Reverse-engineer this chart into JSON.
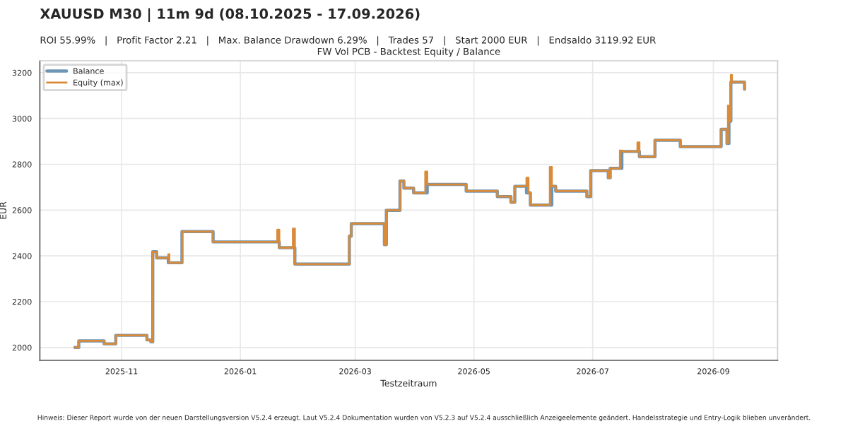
{
  "chart_data": {
    "type": "step",
    "title": "XAUUSD M30 | 11m 9d (08.10.2025 - 17.09.2026)",
    "subtitle": "ROI 55.99%   |   Profit Factor 2.21   |   Max. Balance Drawdown 6.29%   |   Trades 57   |   Start 2000 EUR   |   Endsaldo 3119.92 EUR",
    "annotations": [
      "FW Vol PCB - Backtest Equity / Balance",
      "Hinweis: Dieser Report wurde von der neuen Darstellungsversion V5.2.4 erzeugt. Laut V5.2.4 Dokumentation wurden von V5.2.3 auf V5.2.4 ausschließlich Anzeigeelemente geändert. Handelsstrategie und Entry-Logik blieben unverändert."
    ],
    "xlabel": "Testzeitraum",
    "ylabel": "EUR",
    "xlim": [
      "2025-09-20",
      "2026-10-04"
    ],
    "xticks": [
      {
        "value": "2025-11-01",
        "label": "2025-11"
      },
      {
        "value": "2026-01-01",
        "label": "2026-01"
      },
      {
        "value": "2026-03-01",
        "label": "2026-03"
      },
      {
        "value": "2026-05-01",
        "label": "2026-05"
      },
      {
        "value": "2026-07-01",
        "label": "2026-07"
      },
      {
        "value": "2026-09-01",
        "label": "2026-09"
      }
    ],
    "ylim": [
      1944,
      3252
    ],
    "yticks": [
      2000,
      2200,
      2400,
      2600,
      2800,
      3000,
      3200
    ],
    "grid": true,
    "legend": "top left",
    "series": [
      {
        "name": "Balance",
        "color": "#6f95b5",
        "x": [
          "2025-10-08",
          "2025-10-10",
          "2025-10-23",
          "2025-10-29",
          "2025-11-14",
          "2025-11-16",
          "2025-11-17",
          "2025-11-19",
          "2025-11-25",
          "2025-12-02",
          "2025-12-18",
          "2026-01-21",
          "2026-01-29",
          "2026-02-26",
          "2026-02-27",
          "2026-03-16",
          "2026-03-17",
          "2026-03-24",
          "2026-03-26",
          "2026-03-31",
          "2026-04-07",
          "2026-04-27",
          "2026-05-13",
          "2026-05-20",
          "2026-05-22",
          "2026-05-28",
          "2026-05-30",
          "2026-06-10",
          "2026-06-12",
          "2026-06-28",
          "2026-06-30",
          "2026-07-09",
          "2026-07-10",
          "2026-07-16",
          "2026-07-25",
          "2026-08-02",
          "2026-08-15",
          "2026-09-05",
          "2026-09-08",
          "2026-09-09",
          "2026-09-10",
          "2026-09-17"
        ],
        "values": [
          2000,
          2029,
          2016,
          2053,
          2033,
          2025,
          2418,
          2391,
          2370,
          2506,
          2461,
          2436,
          2364,
          2486,
          2541,
          2449,
          2599,
          2727,
          2696,
          2675,
          2712,
          2683,
          2659,
          2634,
          2704,
          2675,
          2622,
          2704,
          2683,
          2659,
          2772,
          2741,
          2782,
          2856,
          2833,
          2905,
          2877,
          2953,
          2891,
          2988,
          3159,
          3128
        ]
      },
      {
        "name": "Equity (max)",
        "color": "#d98b3a",
        "x": [
          "2025-10-08",
          "2025-10-10",
          "2025-10-23",
          "2025-10-29",
          "2025-11-14",
          "2025-11-16",
          "2025-11-17",
          "2025-11-19",
          "2025-11-25T00:00",
          "2025-11-25T12:00",
          "2025-12-02",
          "2025-12-18",
          "2026-01-20",
          "2026-01-21",
          "2026-01-28",
          "2026-01-29",
          "2026-02-26",
          "2026-02-27",
          "2026-03-16",
          "2026-03-17",
          "2026-03-24",
          "2026-03-26",
          "2026-03-31",
          "2026-04-06",
          "2026-04-07",
          "2026-04-27",
          "2026-05-13",
          "2026-05-20",
          "2026-05-22",
          "2026-05-28",
          "2026-05-29",
          "2026-05-30",
          "2026-06-09",
          "2026-06-10",
          "2026-06-12",
          "2026-06-28",
          "2026-06-30",
          "2026-07-09",
          "2026-07-10",
          "2026-07-15",
          "2026-07-16",
          "2026-07-24",
          "2026-07-25",
          "2026-08-02",
          "2026-08-15",
          "2026-09-05",
          "2026-09-08T00:00",
          "2026-09-08T12:00",
          "2026-09-09",
          "2026-09-10T00:00",
          "2026-09-10T12:00",
          "2026-09-17"
        ],
        "values": [
          2000,
          2029,
          2016,
          2053,
          2033,
          2025,
          2418,
          2391,
          2407,
          2370,
          2506,
          2461,
          2514,
          2436,
          2519,
          2364,
          2486,
          2541,
          2449,
          2599,
          2727,
          2696,
          2675,
          2768,
          2712,
          2683,
          2659,
          2634,
          2704,
          2741,
          2675,
          2622,
          2788,
          2704,
          2683,
          2659,
          2772,
          2741,
          2782,
          2860,
          2856,
          2895,
          2833,
          2905,
          2877,
          2953,
          2891,
          3056,
          2988,
          3190,
          3159,
          3128
        ]
      }
    ]
  }
}
